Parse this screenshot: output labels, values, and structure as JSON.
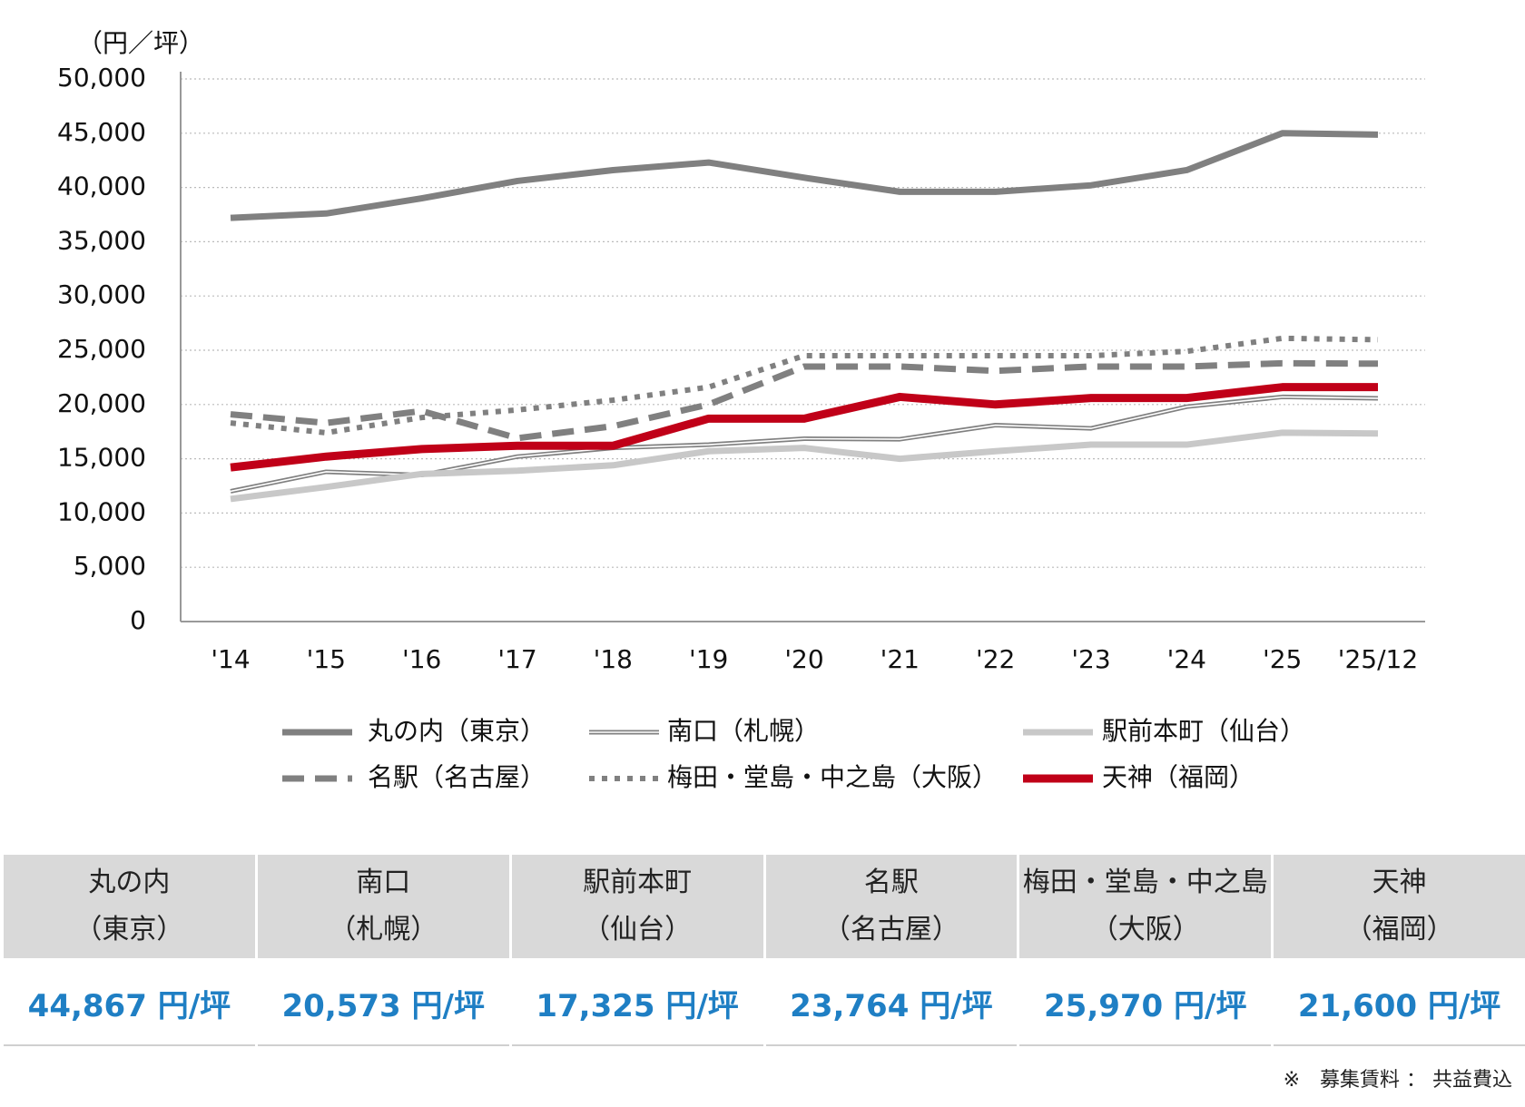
{
  "chart_data": {
    "type": "line",
    "y_label": "（円／坪）",
    "categories": [
      "'14",
      "'15",
      "'16",
      "'17",
      "'18",
      "'19",
      "'20",
      "'21",
      "'22",
      "'23",
      "'24",
      "'25",
      "'25/12"
    ],
    "ylim": [
      0,
      50000
    ],
    "yticks": [
      0,
      {
        "value": 5000,
        "label": "5,000"
      },
      {
        "value": 10000,
        "label": "10,000"
      },
      {
        "value": 15000,
        "label": "15,000"
      },
      {
        "value": 20000,
        "label": "20,000"
      },
      {
        "value": 25000,
        "label": "25,000"
      },
      {
        "value": 30000,
        "label": "30,000"
      },
      {
        "value": 35000,
        "label": "35,000"
      },
      {
        "value": 40000,
        "label": "40,000"
      },
      {
        "value": 45000,
        "label": "45,000"
      },
      {
        "value": 50000,
        "label": "50,000"
      }
    ],
    "grid": true,
    "series": [
      {
        "name": "丸の内（東京）",
        "color": "#808080",
        "style": "solid",
        "values": [
          37200,
          37600,
          39000,
          40600,
          41600,
          42300,
          40900,
          39600,
          39600,
          40200,
          41600,
          45000,
          44867
        ]
      },
      {
        "name": "南口（札幌）",
        "color": "#808080",
        "style": "double",
        "values": [
          12000,
          13800,
          13500,
          15200,
          16000,
          16300,
          16850,
          16800,
          18100,
          17800,
          19800,
          20700,
          20573
        ]
      },
      {
        "name": "駅前本町（仙台）",
        "color": "#c8c8c8",
        "style": "solid",
        "values": [
          11300,
          12400,
          13600,
          13900,
          14400,
          15700,
          16000,
          15000,
          15700,
          16300,
          16300,
          17400,
          17325
        ]
      },
      {
        "name": "名駅（名古屋）",
        "color": "#808080",
        "style": "dashed",
        "values": [
          19100,
          18300,
          19400,
          16900,
          18000,
          20000,
          23500,
          23500,
          23100,
          23500,
          23500,
          23800,
          23764
        ]
      },
      {
        "name": "梅田・堂島・中之島（大阪）",
        "color": "#808080",
        "style": "dotted",
        "values": [
          18300,
          17400,
          18800,
          19500,
          20400,
          21600,
          24500,
          24500,
          24500,
          24500,
          24900,
          26100,
          25970
        ]
      },
      {
        "name": "天神（福岡）",
        "color": "#c00018",
        "style": "bold",
        "values": [
          14200,
          15200,
          15900,
          16200,
          16200,
          18700,
          18700,
          20700,
          20000,
          20600,
          20600,
          21600,
          21600
        ]
      }
    ]
  },
  "table": {
    "headers": [
      [
        "丸の内",
        "（東京）"
      ],
      [
        "南口",
        "（札幌）"
      ],
      [
        "駅前本町",
        "（仙台）"
      ],
      [
        "名駅",
        "（名古屋）"
      ],
      [
        "梅田・堂島・中之島",
        "（大阪）"
      ],
      [
        "天神",
        "（福岡）"
      ]
    ],
    "values": [
      "44,867 円/坪",
      "20,573 円/坪",
      "17,325 円/坪",
      "23,764 円/坪",
      "25,970 円/坪",
      "21,600 円/坪"
    ]
  },
  "note": "※　募集賃料 ： 共益費込"
}
